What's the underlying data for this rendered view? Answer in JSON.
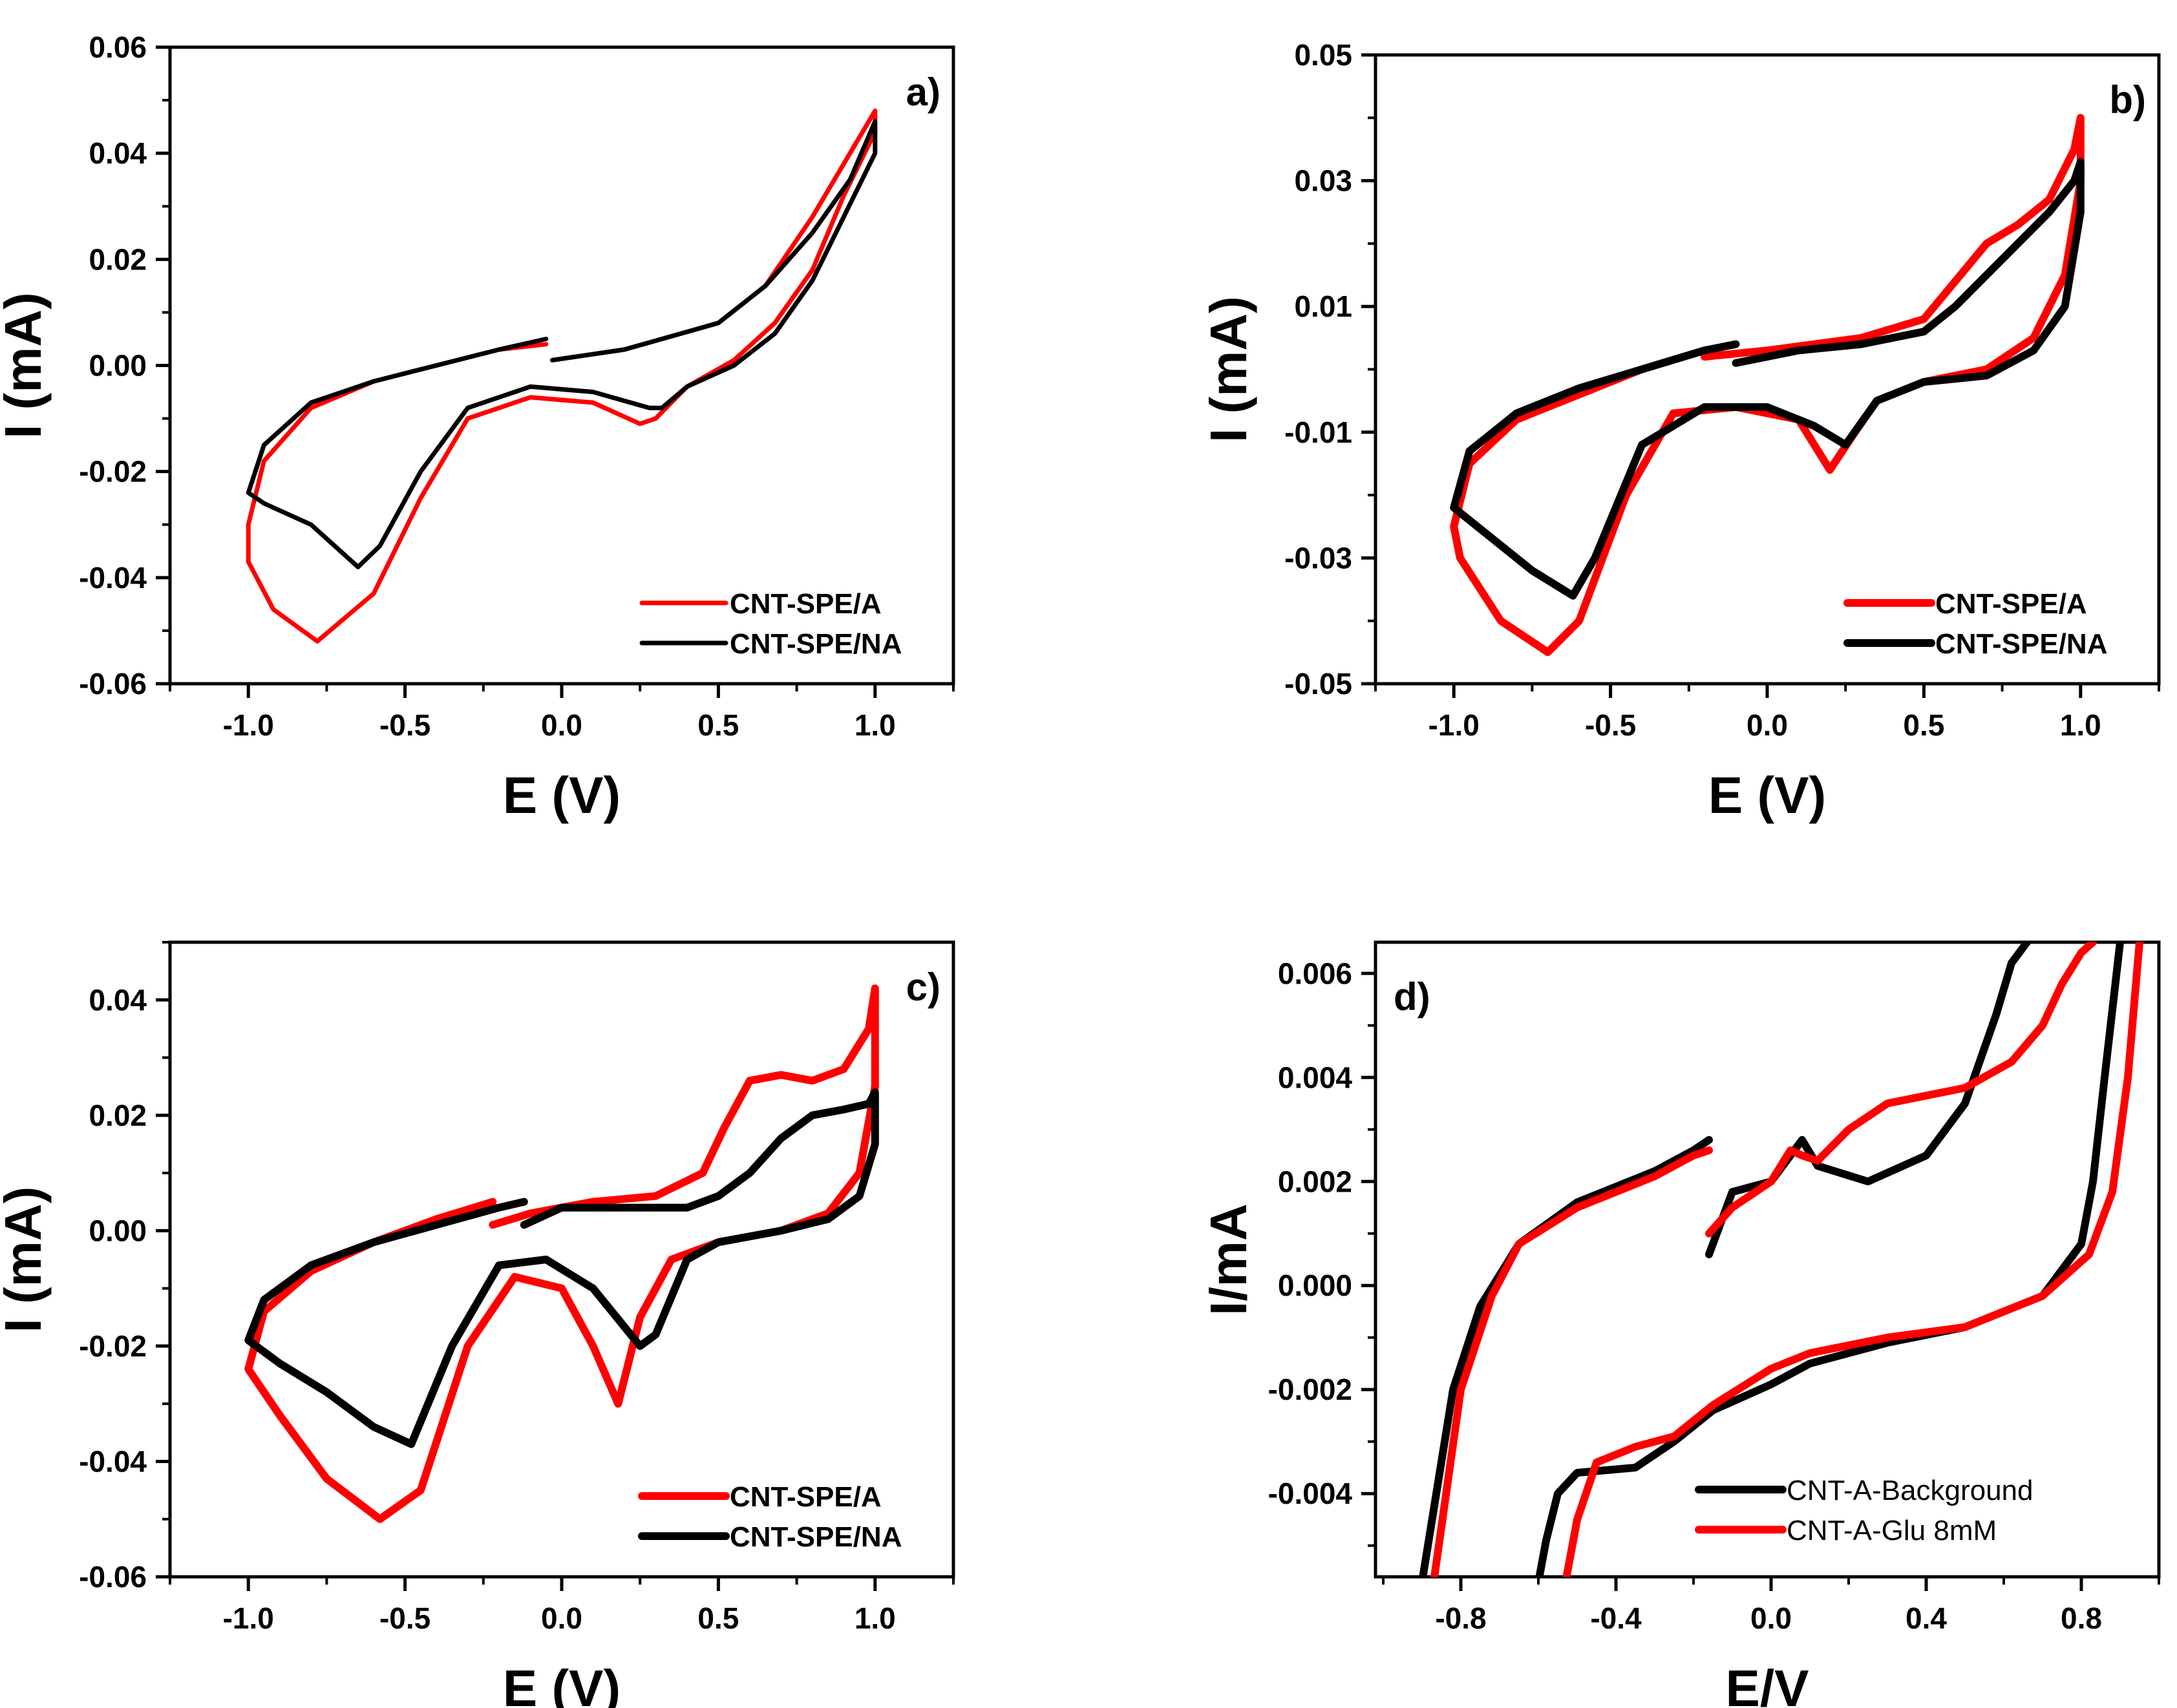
{
  "figure": {
    "panel_count": 4
  },
  "chart_data": [
    {
      "id": "a",
      "type": "line",
      "panel_label": "a)",
      "xlabel": "E (V)",
      "ylabel": "I (mA)",
      "xlim": [
        -1.25,
        1.25
      ],
      "ylim": [
        -0.06,
        0.06
      ],
      "xticks": [
        -1.0,
        -0.5,
        0.0,
        0.5,
        1.0
      ],
      "xtick_labels": [
        "-1.0",
        "-0.5",
        "0.0",
        "0.5",
        "1.0"
      ],
      "yticks": [
        -0.06,
        -0.04,
        -0.02,
        0.0,
        0.02,
        0.04,
        0.06
      ],
      "ytick_labels": [
        "-0.06",
        "-0.04",
        "-0.02",
        "0.00",
        "0.02",
        "0.04",
        "0.06"
      ],
      "legend_position": "bottom-right",
      "line_weight": "thin",
      "series": [
        {
          "name": "CNT-SPE/A",
          "color": "#ff0000",
          "x": [
            -0.03,
            0.2,
            0.5,
            0.65,
            0.8,
            0.92,
            1.0,
            1.0,
            0.9,
            0.8,
            0.68,
            0.55,
            0.4,
            0.3,
            0.25,
            0.1,
            -0.1,
            -0.3,
            -0.45,
            -0.6,
            -0.78,
            -0.92,
            -1.0,
            -1.0,
            -0.95,
            -0.8,
            -0.6,
            -0.4,
            -0.2,
            -0.05
          ],
          "y": [
            0.001,
            0.003,
            0.008,
            0.015,
            0.028,
            0.04,
            0.048,
            0.044,
            0.032,
            0.018,
            0.008,
            0.001,
            -0.004,
            -0.01,
            -0.011,
            -0.007,
            -0.006,
            -0.01,
            -0.025,
            -0.043,
            -0.052,
            -0.046,
            -0.037,
            -0.03,
            -0.018,
            -0.008,
            -0.003,
            0.0,
            0.003,
            0.004
          ]
        },
        {
          "name": "CNT-SPE/NA",
          "color": "#000000",
          "x": [
            -0.03,
            0.2,
            0.5,
            0.65,
            0.8,
            0.92,
            1.0,
            1.0,
            0.9,
            0.8,
            0.68,
            0.55,
            0.4,
            0.32,
            0.28,
            0.1,
            -0.1,
            -0.3,
            -0.45,
            -0.58,
            -0.65,
            -0.8,
            -0.95,
            -1.0,
            -0.95,
            -0.8,
            -0.6,
            -0.4,
            -0.2,
            -0.05
          ],
          "y": [
            0.001,
            0.003,
            0.008,
            0.015,
            0.025,
            0.035,
            0.046,
            0.04,
            0.028,
            0.016,
            0.006,
            0.0,
            -0.004,
            -0.008,
            -0.008,
            -0.005,
            -0.004,
            -0.008,
            -0.02,
            -0.034,
            -0.038,
            -0.03,
            -0.026,
            -0.024,
            -0.015,
            -0.007,
            -0.003,
            0.0,
            0.003,
            0.005
          ]
        }
      ]
    },
    {
      "id": "b",
      "type": "line",
      "panel_label": "b)",
      "xlabel": "E (V)",
      "ylabel": "I (mA)",
      "xlim": [
        -1.25,
        1.25
      ],
      "ylim": [
        -0.05,
        0.05
      ],
      "xticks": [
        -1.0,
        -0.5,
        0.0,
        0.5,
        1.0
      ],
      "xtick_labels": [
        "-1.0",
        "-0.5",
        "0.0",
        "0.5",
        "1.0"
      ],
      "yticks": [
        -0.05,
        -0.03,
        -0.01,
        0.01,
        0.03,
        0.05
      ],
      "ytick_labels": [
        "-0.05",
        "-0.03",
        "-0.01",
        "0.01",
        "0.03",
        "0.05"
      ],
      "legend_position": "bottom-right",
      "line_weight": "thick",
      "series": [
        {
          "name": "CNT-SPE/A",
          "color": "#ff0000",
          "x": [
            -0.2,
            0.0,
            0.3,
            0.5,
            0.6,
            0.7,
            0.8,
            0.9,
            0.98,
            1.0,
            1.0,
            0.95,
            0.85,
            0.7,
            0.5,
            0.35,
            0.28,
            0.2,
            0.1,
            -0.1,
            -0.3,
            -0.45,
            -0.6,
            -0.7,
            -0.85,
            -0.98,
            -1.0,
            -0.95,
            -0.8,
            -0.6,
            -0.4,
            -0.2
          ],
          "y": [
            0.002,
            0.003,
            0.005,
            0.008,
            0.014,
            0.02,
            0.023,
            0.027,
            0.035,
            0.04,
            0.03,
            0.015,
            0.005,
            0.0,
            -0.002,
            -0.005,
            -0.01,
            -0.016,
            -0.008,
            -0.006,
            -0.007,
            -0.02,
            -0.04,
            -0.045,
            -0.04,
            -0.03,
            -0.025,
            -0.015,
            -0.008,
            -0.004,
            0.0,
            0.003
          ]
        },
        {
          "name": "CNT-SPE/NA",
          "color": "#000000",
          "x": [
            -0.1,
            0.1,
            0.3,
            0.5,
            0.6,
            0.7,
            0.8,
            0.9,
            0.98,
            1.0,
            1.0,
            0.95,
            0.85,
            0.7,
            0.5,
            0.35,
            0.25,
            0.15,
            0.0,
            -0.2,
            -0.4,
            -0.55,
            -0.62,
            -0.75,
            -0.9,
            -1.0,
            -0.95,
            -0.8,
            -0.6,
            -0.4,
            -0.2,
            -0.1
          ],
          "y": [
            0.001,
            0.003,
            0.004,
            0.006,
            0.01,
            0.015,
            0.02,
            0.025,
            0.03,
            0.033,
            0.025,
            0.01,
            0.003,
            -0.001,
            -0.002,
            -0.005,
            -0.012,
            -0.009,
            -0.006,
            -0.006,
            -0.012,
            -0.03,
            -0.036,
            -0.032,
            -0.026,
            -0.022,
            -0.013,
            -0.007,
            -0.003,
            0.0,
            0.003,
            0.004
          ]
        }
      ]
    },
    {
      "id": "c",
      "type": "line",
      "panel_label": "c)",
      "xlabel": "E (V)",
      "ylabel": "I (mA)",
      "xlim": [
        -1.25,
        1.25
      ],
      "ylim": [
        -0.06,
        0.05
      ],
      "xticks": [
        -1.0,
        -0.5,
        0.0,
        0.5,
        1.0
      ],
      "xtick_labels": [
        "-1.0",
        "-0.5",
        "0.0",
        "0.5",
        "1.0"
      ],
      "yticks": [
        -0.06,
        -0.04,
        -0.02,
        0.0,
        0.02,
        0.04
      ],
      "ytick_labels": [
        "-0.06",
        "-0.04",
        "-0.02",
        "0.00",
        "0.02",
        "0.04"
      ],
      "legend_position": "bottom-right",
      "line_weight": "thick",
      "series": [
        {
          "name": "CNT-SPE/A",
          "color": "#ff0000",
          "x": [
            -0.22,
            -0.1,
            0.1,
            0.3,
            0.45,
            0.52,
            0.6,
            0.7,
            0.8,
            0.9,
            0.98,
            1.0,
            1.0,
            0.95,
            0.85,
            0.7,
            0.5,
            0.35,
            0.25,
            0.18,
            0.1,
            0.0,
            -0.15,
            -0.3,
            -0.45,
            -0.58,
            -0.75,
            -0.9,
            -1.0,
            -0.95,
            -0.8,
            -0.6,
            -0.4,
            -0.22
          ],
          "y": [
            0.001,
            0.003,
            0.005,
            0.006,
            0.01,
            0.018,
            0.026,
            0.027,
            0.026,
            0.028,
            0.035,
            0.042,
            0.025,
            0.01,
            0.003,
            0.0,
            -0.002,
            -0.005,
            -0.015,
            -0.03,
            -0.02,
            -0.01,
            -0.008,
            -0.02,
            -0.045,
            -0.05,
            -0.043,
            -0.032,
            -0.024,
            -0.014,
            -0.007,
            -0.002,
            0.002,
            0.005
          ]
        },
        {
          "name": "CNT-SPE/NA",
          "color": "#000000",
          "x": [
            -0.12,
            0.0,
            0.2,
            0.4,
            0.5,
            0.6,
            0.7,
            0.8,
            0.9,
            0.98,
            1.0,
            1.0,
            0.95,
            0.85,
            0.7,
            0.5,
            0.4,
            0.3,
            0.25,
            0.1,
            -0.05,
            -0.2,
            -0.35,
            -0.48,
            -0.6,
            -0.75,
            -0.9,
            -1.0,
            -0.95,
            -0.8,
            -0.6,
            -0.4,
            -0.2,
            -0.12
          ],
          "y": [
            0.001,
            0.004,
            0.004,
            0.004,
            0.006,
            0.01,
            0.016,
            0.02,
            0.021,
            0.022,
            0.024,
            0.015,
            0.006,
            0.002,
            0.0,
            -0.002,
            -0.005,
            -0.018,
            -0.02,
            -0.01,
            -0.005,
            -0.006,
            -0.02,
            -0.037,
            -0.034,
            -0.028,
            -0.023,
            -0.019,
            -0.012,
            -0.006,
            -0.002,
            0.001,
            0.004,
            0.005
          ]
        }
      ]
    },
    {
      "id": "d",
      "type": "line",
      "panel_label": "d)",
      "xlabel": "E/V",
      "ylabel": "I/mA",
      "xlim": [
        -1.02,
        1.0
      ],
      "ylim": [
        -0.0056,
        0.0066
      ],
      "xticks": [
        -0.8,
        -0.4,
        0.0,
        0.4,
        0.8
      ],
      "xtick_labels": [
        "-0.8",
        "-0.4",
        "0.0",
        "0.4",
        "0.8"
      ],
      "yticks": [
        -0.004,
        -0.002,
        0.0,
        0.002,
        0.004,
        0.006
      ],
      "ytick_labels": [
        "-0.004",
        "-0.002",
        "0.000",
        "0.002",
        "0.004",
        "0.006"
      ],
      "legend_position": "bottom-right",
      "line_weight": "thick",
      "legend_font_weight": "normal",
      "series": [
        {
          "name": "CNT-A-Background",
          "color": "#000000",
          "segments": [
            {
              "x": [
                -0.16,
                -0.2,
                -0.3,
                -0.5,
                -0.65,
                -0.75,
                -0.82,
                -0.9
              ],
              "y": [
                0.0028,
                0.0026,
                0.0022,
                0.0016,
                0.0008,
                -0.0004,
                -0.002,
                -0.0057
              ]
            },
            {
              "x": [
                -0.16,
                -0.1,
                -0.05,
                0.0,
                0.05,
                0.08,
                0.12,
                0.25,
                0.4,
                0.5,
                0.58,
                0.62,
                0.66
              ],
              "y": [
                0.0006,
                0.0018,
                0.0019,
                0.002,
                0.0025,
                0.0028,
                0.0023,
                0.002,
                0.0025,
                0.0035,
                0.0052,
                0.0062,
                0.0066
              ]
            },
            {
              "x": [
                0.9,
                0.86,
                0.83,
                0.8,
                0.7,
                0.5,
                0.3,
                0.1,
                0.0,
                -0.15,
                -0.25,
                -0.35,
                -0.5,
                -0.55,
                -0.58,
                -0.6
              ],
              "y": [
                0.0066,
                0.004,
                0.002,
                0.0008,
                -0.0002,
                -0.0008,
                -0.0011,
                -0.0015,
                -0.0019,
                -0.0024,
                -0.003,
                -0.0035,
                -0.0036,
                -0.004,
                -0.0049,
                -0.0057
              ]
            }
          ]
        },
        {
          "name": "CNT-A-Glu 8mM",
          "color": "#ff0000",
          "segments": [
            {
              "x": [
                -0.16,
                -0.2,
                -0.3,
                -0.5,
                -0.65,
                -0.72,
                -0.8,
                -0.87
              ],
              "y": [
                0.0026,
                0.0025,
                0.0021,
                0.0015,
                0.0008,
                -0.0002,
                -0.002,
                -0.0057
              ]
            },
            {
              "x": [
                -0.16,
                -0.1,
                0.0,
                0.05,
                0.08,
                0.12,
                0.2,
                0.3,
                0.5,
                0.62,
                0.7,
                0.75,
                0.8,
                0.83
              ],
              "y": [
                0.001,
                0.0015,
                0.002,
                0.0026,
                0.0025,
                0.0024,
                0.003,
                0.0035,
                0.0038,
                0.0043,
                0.005,
                0.0058,
                0.0064,
                0.0066
              ]
            },
            {
              "x": [
                0.95,
                0.92,
                0.88,
                0.82,
                0.7,
                0.5,
                0.3,
                0.1,
                0.0,
                -0.15,
                -0.25,
                -0.35,
                -0.45,
                -0.5,
                -0.53
              ],
              "y": [
                0.0066,
                0.004,
                0.0018,
                0.0006,
                -0.0002,
                -0.0008,
                -0.001,
                -0.0013,
                -0.0016,
                -0.0023,
                -0.0029,
                -0.0031,
                -0.0034,
                -0.0045,
                -0.0057
              ]
            }
          ]
        }
      ]
    }
  ]
}
